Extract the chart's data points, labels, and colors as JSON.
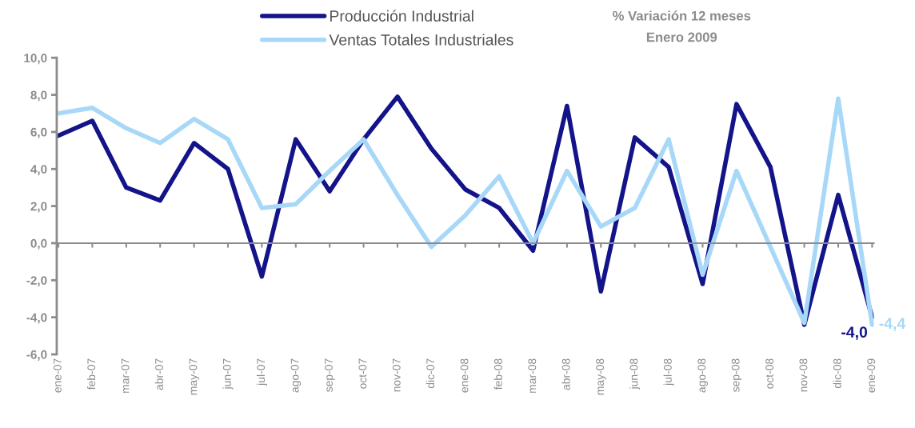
{
  "chart_data": {
    "type": "line",
    "title": "% Variación 12 meses",
    "subtitle": "Enero 2009",
    "categories": [
      "ene-07",
      "feb-07",
      "mar-07",
      "abr-07",
      "may-07",
      "jun-07",
      "jul-07",
      "ago-07",
      "sep-07",
      "oct-07",
      "nov-07",
      "dic-07",
      "ene-08",
      "feb-08",
      "mar-08",
      "abr-08",
      "may-08",
      "jun-08",
      "jul-08",
      "ago-08",
      "sep-08",
      "oct-08",
      "nov-08",
      "dic-08",
      "ene-09"
    ],
    "series": [
      {
        "name": "Producción Industrial",
        "color": "#14148a",
        "values": [
          5.8,
          6.6,
          3.0,
          2.3,
          5.4,
          4.0,
          -1.8,
          5.6,
          2.8,
          5.6,
          7.9,
          5.1,
          2.9,
          1.9,
          -0.4,
          7.4,
          -2.6,
          5.7,
          4.1,
          -2.2,
          7.5,
          4.1,
          -4.4,
          2.6,
          -4.0
        ],
        "value_labels": [
          null,
          null,
          null,
          null,
          null,
          null,
          null,
          null,
          null,
          null,
          null,
          null,
          null,
          null,
          null,
          null,
          null,
          null,
          null,
          null,
          null,
          null,
          null,
          null,
          "-4,0"
        ]
      },
      {
        "name": "Ventas Totales Industriales",
        "color": "#a8d8f8",
        "values": [
          7.0,
          7.3,
          6.2,
          5.4,
          6.7,
          5.6,
          1.9,
          2.1,
          3.9,
          5.6,
          2.6,
          -0.2,
          1.5,
          3.6,
          0.0,
          3.9,
          0.9,
          1.9,
          5.6,
          -1.7,
          3.9,
          -0.2,
          -4.3,
          7.8,
          -4.4
        ],
        "value_labels": [
          null,
          null,
          null,
          null,
          null,
          null,
          null,
          null,
          null,
          null,
          null,
          null,
          null,
          null,
          null,
          null,
          null,
          null,
          null,
          null,
          null,
          null,
          null,
          null,
          "-4,4"
        ]
      }
    ],
    "ylim": [
      -6,
      10
    ],
    "yticks": [
      {
        "value": -6,
        "label": "-6,0"
      },
      {
        "value": -4,
        "label": "-4,0"
      },
      {
        "value": -2,
        "label": "-2,0"
      },
      {
        "value": 0,
        "label": "0,0"
      },
      {
        "value": 2,
        "label": "2,0"
      },
      {
        "value": 4,
        "label": "4,0"
      },
      {
        "value": 6,
        "label": "6,0"
      },
      {
        "value": 8,
        "label": "8,0"
      },
      {
        "value": 10,
        "label": "10,0"
      }
    ],
    "legend": "top",
    "marker": "none",
    "line_style": "solid"
  }
}
